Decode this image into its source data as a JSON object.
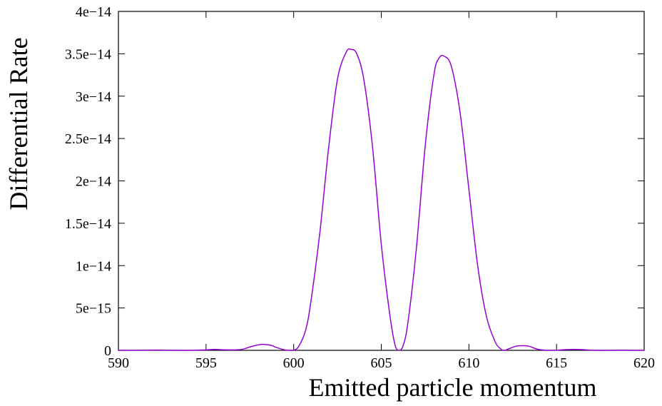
{
  "chart_data": {
    "type": "line",
    "title": "",
    "xlabel": "Emitted particle momentum",
    "ylabel": "Differential Rate",
    "xlim": [
      590,
      620
    ],
    "ylim": [
      0,
      4e-14
    ],
    "x_ticks": [
      590,
      595,
      600,
      605,
      610,
      615,
      620
    ],
    "x_tick_labels": [
      "590",
      "595",
      "600",
      "605",
      "610",
      "615",
      "620"
    ],
    "y_ticks": [
      0,
      5e-15,
      1e-14,
      1.5e-14,
      2e-14,
      2.5e-14,
      3e-14,
      3.5e-14,
      4e-14
    ],
    "y_tick_labels": [
      "0",
      "5e−15",
      "1e−14",
      "1.5e−14",
      "2e−14",
      "2.5e−14",
      "3e−14",
      "3.5e−14",
      "4e−14"
    ],
    "grid": false,
    "legend": "none",
    "series": [
      {
        "color": "#9400d3",
        "x": [
          590,
          591,
          592,
          592.5,
          593,
          594,
          595,
          595.5,
          596,
          597,
          597.5,
          598,
          598.3,
          598.7,
          599,
          599.5,
          599.8,
          600,
          600.3,
          600.7,
          601,
          601.5,
          602,
          602.5,
          603,
          603.3,
          603.6,
          604,
          604.5,
          605,
          605.5,
          605.8,
          606,
          606.2,
          606.5,
          607,
          607.5,
          608,
          608.3,
          608.6,
          609,
          609.5,
          610,
          610.5,
          611,
          611.5,
          611.8,
          612,
          612.3,
          612.7,
          613,
          613.4,
          613.8,
          614,
          614.5,
          615,
          615.5,
          616,
          616.5,
          617,
          617.5,
          618,
          619,
          620
        ],
        "y": [
          0,
          1e-17,
          3e-17,
          3e-17,
          1e-17,
          0,
          5e-17,
          1.2e-16,
          6e-17,
          1e-16,
          4e-16,
          6.5e-16,
          7e-16,
          6e-16,
          3.5e-16,
          5e-17,
          0,
          1e-17,
          5e-16,
          2.5e-15,
          6e-15,
          1.4e-14,
          2.4e-14,
          3.2e-14,
          3.52e-14,
          3.55e-14,
          3.5e-14,
          3.2e-14,
          2.4e-14,
          1.25e-14,
          4e-15,
          5e-16,
          0,
          3e-16,
          3e-15,
          1.2e-14,
          2.4e-14,
          3.25e-14,
          3.45e-14,
          3.47e-14,
          3.35e-14,
          2.8e-14,
          1.9e-14,
          1e-14,
          4e-15,
          1e-15,
          2e-16,
          0,
          2e-16,
          5e-16,
          5.5e-16,
          5e-16,
          2e-16,
          1e-16,
          0,
          2e-17,
          8e-17,
          1.2e-16,
          8e-17,
          2e-17,
          0,
          1e-17,
          2e-17,
          0
        ]
      }
    ]
  }
}
